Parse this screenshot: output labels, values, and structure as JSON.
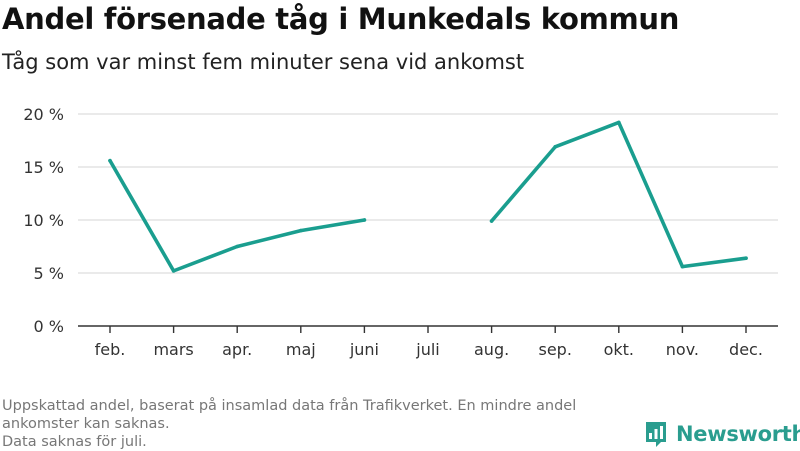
{
  "header": {
    "title": "Andel försenade tåg i Munkedals kommun",
    "subtitle": "Tåg som var minst fem minuter sena vid ankomst"
  },
  "footer": {
    "note_line_1": "Uppskattad andel, baserat på insamlad data från Trafikverket. En mindre andel ankomster kan saknas.",
    "note_line_2": "Data saknas för juli.",
    "brand_name": "Newsworthy",
    "brand_icon": "bar-chart-logo-icon"
  },
  "colors": {
    "line": "#1a9e8f",
    "grid": "#dddddd",
    "axis": "#333333",
    "brand": "#2a9d8f"
  },
  "chart_data": {
    "type": "line",
    "categories": [
      "feb.",
      "mars",
      "apr.",
      "maj",
      "juni",
      "juli",
      "aug.",
      "sep.",
      "okt.",
      "nov.",
      "dec."
    ],
    "series": [
      {
        "values": [
          15.6,
          5.2,
          7.5,
          9.0,
          10.0,
          null,
          9.9,
          16.9,
          19.2,
          5.6,
          6.4
        ]
      }
    ],
    "y_ticks": [
      0,
      5,
      10,
      15,
      20
    ],
    "y_tick_labels": [
      "0 %",
      "5 %",
      "10 %",
      "15 %",
      "20 %"
    ],
    "ylim": [
      0,
      20
    ],
    "xlabel": "",
    "ylabel": "",
    "grid": "horizontal",
    "legend": "none"
  }
}
